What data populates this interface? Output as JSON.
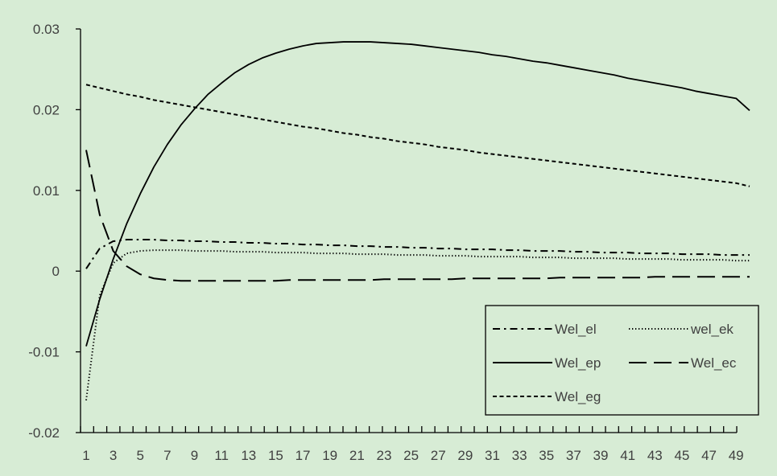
{
  "chart_data": {
    "type": "line",
    "x": [
      1,
      2,
      3,
      4,
      5,
      6,
      7,
      8,
      9,
      10,
      11,
      12,
      13,
      14,
      15,
      16,
      17,
      18,
      19,
      20,
      21,
      22,
      23,
      24,
      25,
      26,
      27,
      28,
      29,
      30,
      31,
      32,
      33,
      34,
      35,
      36,
      37,
      38,
      39,
      40,
      41,
      42,
      43,
      44,
      45,
      46,
      47,
      48,
      49,
      50
    ],
    "x_tick_labels": [
      "1",
      "3",
      "5",
      "7",
      "9",
      "11",
      "13",
      "15",
      "17",
      "19",
      "21",
      "23",
      "25",
      "27",
      "29",
      "31",
      "33",
      "35",
      "37",
      "39",
      "41",
      "43",
      "45",
      "47",
      "49"
    ],
    "ylim": [
      -0.02,
      0.03
    ],
    "y_ticks": [
      0.03,
      0.02,
      0.01,
      0,
      -0.01,
      -0.02
    ],
    "y_tick_labels": [
      "0.03",
      "0.02",
      "0.01",
      "0",
      "-0.01",
      "-0.02"
    ],
    "grid": false,
    "legend_position": "bottom-right",
    "series": [
      {
        "name": "Wel_el",
        "dash": "dashdot",
        "values": [
          0.0003,
          0.0028,
          0.0037,
          0.0039,
          0.0039,
          0.0039,
          0.0038,
          0.0038,
          0.0037,
          0.0037,
          0.0036,
          0.0036,
          0.0035,
          0.0035,
          0.0034,
          0.0034,
          0.0033,
          0.0033,
          0.0032,
          0.0032,
          0.0031,
          0.0031,
          0.003,
          0.003,
          0.0029,
          0.0029,
          0.0028,
          0.0028,
          0.0027,
          0.0027,
          0.0027,
          0.0026,
          0.0026,
          0.0025,
          0.0025,
          0.0025,
          0.0024,
          0.0024,
          0.0023,
          0.0023,
          0.0023,
          0.0022,
          0.0022,
          0.0022,
          0.0021,
          0.0021,
          0.0021,
          0.002,
          0.002,
          0.002
        ]
      },
      {
        "name": "wel_ek",
        "dash": "dotted",
        "values": [
          -0.016,
          -0.003,
          0.001,
          0.0022,
          0.0025,
          0.0026,
          0.0026,
          0.0026,
          0.0025,
          0.0025,
          0.0025,
          0.0024,
          0.0024,
          0.0024,
          0.0023,
          0.0023,
          0.0023,
          0.0022,
          0.0022,
          0.0022,
          0.0021,
          0.0021,
          0.0021,
          0.002,
          0.002,
          0.002,
          0.0019,
          0.0019,
          0.0019,
          0.0018,
          0.0018,
          0.0018,
          0.0018,
          0.0017,
          0.0017,
          0.0017,
          0.0016,
          0.0016,
          0.0016,
          0.0016,
          0.0015,
          0.0015,
          0.0015,
          0.0015,
          0.0014,
          0.0014,
          0.0014,
          0.0014,
          0.0013,
          0.0013
        ]
      },
      {
        "name": "Wel_ep",
        "dash": "solid",
        "values": [
          -0.0093,
          -0.0035,
          0.0015,
          0.0059,
          0.0096,
          0.0129,
          0.0157,
          0.0181,
          0.0201,
          0.0219,
          0.0233,
          0.0246,
          0.0256,
          0.0264,
          0.027,
          0.0275,
          0.0279,
          0.0282,
          0.0283,
          0.0284,
          0.0284,
          0.0284,
          0.0283,
          0.0282,
          0.0281,
          0.0279,
          0.0277,
          0.0275,
          0.0273,
          0.0271,
          0.0268,
          0.0266,
          0.0263,
          0.026,
          0.0258,
          0.0255,
          0.0252,
          0.0249,
          0.0246,
          0.0243,
          0.0239,
          0.0236,
          0.0233,
          0.023,
          0.0227,
          0.0223,
          0.022,
          0.0217,
          0.0214,
          0.0199
        ]
      },
      {
        "name": "Wel_ec",
        "dash": "longdash",
        "values": [
          0.015,
          0.007,
          0.0025,
          0.0006,
          -0.0004,
          -0.0009,
          -0.0011,
          -0.0012,
          -0.0012,
          -0.0012,
          -0.0012,
          -0.0012,
          -0.0012,
          -0.0012,
          -0.0012,
          -0.0011,
          -0.0011,
          -0.0011,
          -0.0011,
          -0.0011,
          -0.0011,
          -0.0011,
          -0.001,
          -0.001,
          -0.001,
          -0.001,
          -0.001,
          -0.001,
          -0.0009,
          -0.0009,
          -0.0009,
          -0.0009,
          -0.0009,
          -0.0009,
          -0.0009,
          -0.0008,
          -0.0008,
          -0.0008,
          -0.0008,
          -0.0008,
          -0.0008,
          -0.0008,
          -0.0007,
          -0.0007,
          -0.0007,
          -0.0007,
          -0.0007,
          -0.0007,
          -0.0007,
          -0.0007
        ]
      },
      {
        "name": "Wel_eg",
        "dash": "shortdash",
        "values": [
          0.0231,
          0.0227,
          0.0223,
          0.0219,
          0.0216,
          0.0212,
          0.0209,
          0.0206,
          0.0203,
          0.02,
          0.0197,
          0.0194,
          0.0191,
          0.0188,
          0.0185,
          0.0182,
          0.0179,
          0.0177,
          0.0174,
          0.0171,
          0.0169,
          0.0166,
          0.0164,
          0.0161,
          0.0159,
          0.0157,
          0.0154,
          0.0152,
          0.015,
          0.0147,
          0.0145,
          0.0143,
          0.0141,
          0.0139,
          0.0137,
          0.0135,
          0.0133,
          0.0131,
          0.0129,
          0.0127,
          0.0125,
          0.0123,
          0.0121,
          0.0119,
          0.0117,
          0.0115,
          0.0113,
          0.0111,
          0.0109,
          0.0105
        ]
      }
    ]
  }
}
